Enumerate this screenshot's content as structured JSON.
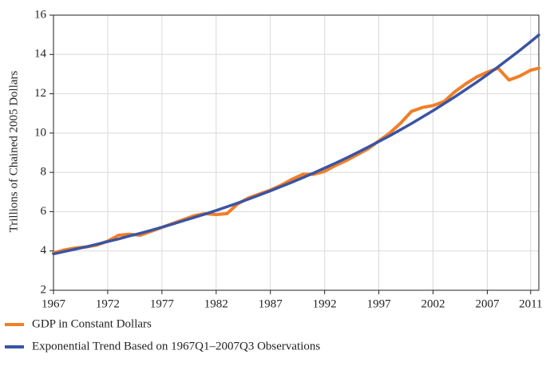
{
  "chart_data": {
    "type": "line",
    "y_label": "Trillions of Chained 2005 Dollars",
    "x": [
      1967,
      1968,
      1969,
      1970,
      1971,
      1972,
      1973,
      1974,
      1975,
      1976,
      1977,
      1978,
      1979,
      1980,
      1981,
      1982,
      1983,
      1984,
      1985,
      1986,
      1987,
      1988,
      1989,
      1990,
      1991,
      1992,
      1993,
      1994,
      1995,
      1996,
      1997,
      1998,
      1999,
      2000,
      2001,
      2002,
      2003,
      2004,
      2005,
      2006,
      2007,
      2008,
      2009,
      2010,
      2011,
      2011.75
    ],
    "series": [
      {
        "name": "GDP in Constant Dollars",
        "color": "#f07f28",
        "values": [
          3.9,
          4.05,
          4.15,
          4.2,
          4.3,
          4.5,
          4.8,
          4.85,
          4.8,
          5.0,
          5.2,
          5.4,
          5.6,
          5.8,
          5.9,
          5.85,
          5.9,
          6.4,
          6.7,
          6.9,
          7.1,
          7.35,
          7.65,
          7.9,
          7.9,
          8.05,
          8.35,
          8.6,
          8.9,
          9.2,
          9.6,
          10.0,
          10.5,
          11.1,
          11.3,
          11.4,
          11.6,
          12.1,
          12.5,
          12.85,
          13.1,
          13.3,
          12.7,
          12.9,
          13.2,
          13.3
        ]
      },
      {
        "name": "Exponential Trend Based on 1967Q1–2007Q3 Observations",
        "color": "#3a54a4",
        "values": [
          3.85,
          3.97,
          4.09,
          4.21,
          4.34,
          4.48,
          4.61,
          4.76,
          4.9,
          5.05,
          5.21,
          5.37,
          5.54,
          5.71,
          5.88,
          6.06,
          6.25,
          6.44,
          6.64,
          6.85,
          7.06,
          7.28,
          7.5,
          7.73,
          7.97,
          8.22,
          8.47,
          8.73,
          9.0,
          9.28,
          9.57,
          9.86,
          10.17,
          10.48,
          10.81,
          11.14,
          11.49,
          11.84,
          12.21,
          12.58,
          12.97,
          13.37,
          13.79,
          14.21,
          14.65,
          14.99
        ]
      }
    ],
    "xlim": [
      1967,
      2011.75
    ],
    "ylim": [
      2,
      16
    ],
    "xticks": [
      1967,
      1972,
      1977,
      1982,
      1987,
      1992,
      1997,
      2002,
      2007,
      2011
    ],
    "yticks": [
      2,
      4,
      6,
      8,
      10,
      12,
      14,
      16
    ],
    "grid": true,
    "legend": "bottom"
  }
}
